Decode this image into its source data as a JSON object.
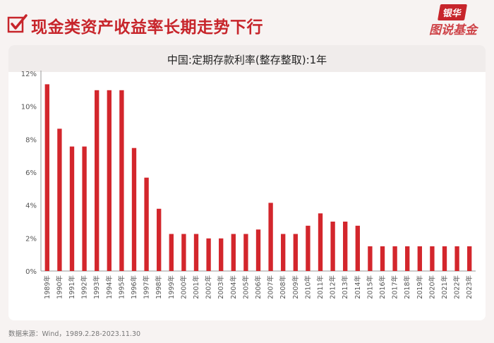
{
  "header": {
    "title": "现金类资产收益率长期走势下行"
  },
  "logo": {
    "top": "银华",
    "bottom": "图说基金"
  },
  "chart_data": {
    "type": "bar",
    "title": "中国:定期存款利率(整存整取):1年",
    "xlabel": "",
    "ylabel": "",
    "ylim": [
      0,
      12
    ],
    "y_ticks": [
      "0%",
      "2%",
      "4%",
      "6%",
      "8%",
      "10%",
      "12%"
    ],
    "grid": false,
    "categories": [
      "1989年",
      "1990年",
      "1991年",
      "1992年",
      "1993年",
      "1994年",
      "1995年",
      "1996年",
      "1997年",
      "1998年",
      "1999年",
      "2000年",
      "2001年",
      "2002年",
      "2003年",
      "2004年",
      "2005年",
      "2006年",
      "2007年",
      "2008年",
      "2009年",
      "2010年",
      "2011年",
      "2012年",
      "2013年",
      "2014年",
      "2015年",
      "2016年",
      "2017年",
      "2018年",
      "2019年",
      "2020年",
      "2021年",
      "2022年",
      "2023年"
    ],
    "values": [
      11.34,
      8.64,
      7.56,
      7.56,
      10.98,
      10.98,
      10.98,
      7.47,
      5.67,
      3.78,
      2.25,
      2.25,
      2.25,
      1.98,
      1.98,
      2.25,
      2.25,
      2.52,
      4.14,
      2.25,
      2.25,
      2.75,
      3.5,
      3.0,
      3.0,
      2.75,
      1.5,
      1.5,
      1.5,
      1.5,
      1.5,
      1.5,
      1.5,
      1.5,
      1.5
    ],
    "bar_color": "#d3262c"
  },
  "source": "数据来源：Wind，1989.2.28-2023.11.30"
}
